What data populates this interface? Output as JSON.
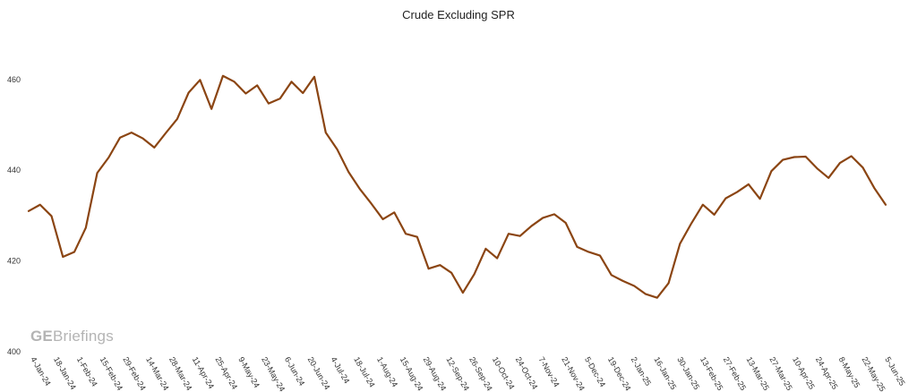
{
  "watermark": {
    "bold": "GE",
    "rest": "Briefings"
  },
  "chart_data": {
    "type": "line",
    "title": "Crude Excluding SPR",
    "xlabel": "",
    "ylabel": "",
    "ylim": [
      400,
      470
    ],
    "yticks": [
      400,
      420,
      440,
      460
    ],
    "grid": false,
    "legend": "none",
    "color": "#8b4513",
    "x_tick_labels": [
      "4-Jan-24",
      "18-Jan-24",
      "1-Feb-24",
      "15-Feb-24",
      "29-Feb-24",
      "14-Mar-24",
      "28-Mar-24",
      "11-Apr-24",
      "25-Apr-24",
      "9-May-24",
      "23-May-24",
      "6-Jun-24",
      "20-Jun-24",
      "4-Jul-24",
      "18-Jul-24",
      "1-Aug-24",
      "15-Aug-24",
      "29-Aug-24",
      "12-Sep-24",
      "26-Sep-24",
      "10-Oct-24",
      "24-Oct-24",
      "7-Nov-24",
      "21-Nov-24",
      "5-Dec-24",
      "19-Dec-24",
      "2-Jan-25",
      "16-Jan-25",
      "30-Jan-25",
      "13-Feb-25",
      "27-Feb-25",
      "13-Mar-25",
      "27-Mar-25",
      "10-Apr-25",
      "24-Apr-25",
      "8-May-25",
      "22-May-25",
      "5-Jun-25"
    ],
    "series": [
      {
        "values": [
          431.0,
          432.4,
          429.9,
          420.9,
          422.0,
          427.3,
          439.4,
          442.8,
          447.2,
          448.3,
          447.0,
          445.0,
          448.2,
          451.3,
          457.1,
          459.9,
          453.5,
          460.8,
          459.5,
          456.9,
          458.7,
          454.7,
          455.8,
          459.5,
          457.0,
          460.6,
          448.3,
          444.6,
          439.6,
          435.8,
          432.6,
          429.2,
          430.7,
          426.0,
          425.3,
          418.3,
          419.1,
          417.4,
          413.0,
          417.1,
          422.7,
          420.6,
          426.0,
          425.5,
          427.7,
          429.5,
          430.3,
          428.4,
          423.1,
          422.0,
          421.2,
          416.9,
          415.6,
          414.5,
          412.7,
          411.9,
          415.1,
          423.8,
          428.3,
          432.4,
          430.2,
          433.8,
          435.2,
          436.9,
          433.7,
          439.8,
          442.3,
          442.9,
          443.0,
          440.4,
          438.3,
          441.6,
          443.1,
          440.6,
          436.1,
          432.4
        ]
      }
    ]
  }
}
